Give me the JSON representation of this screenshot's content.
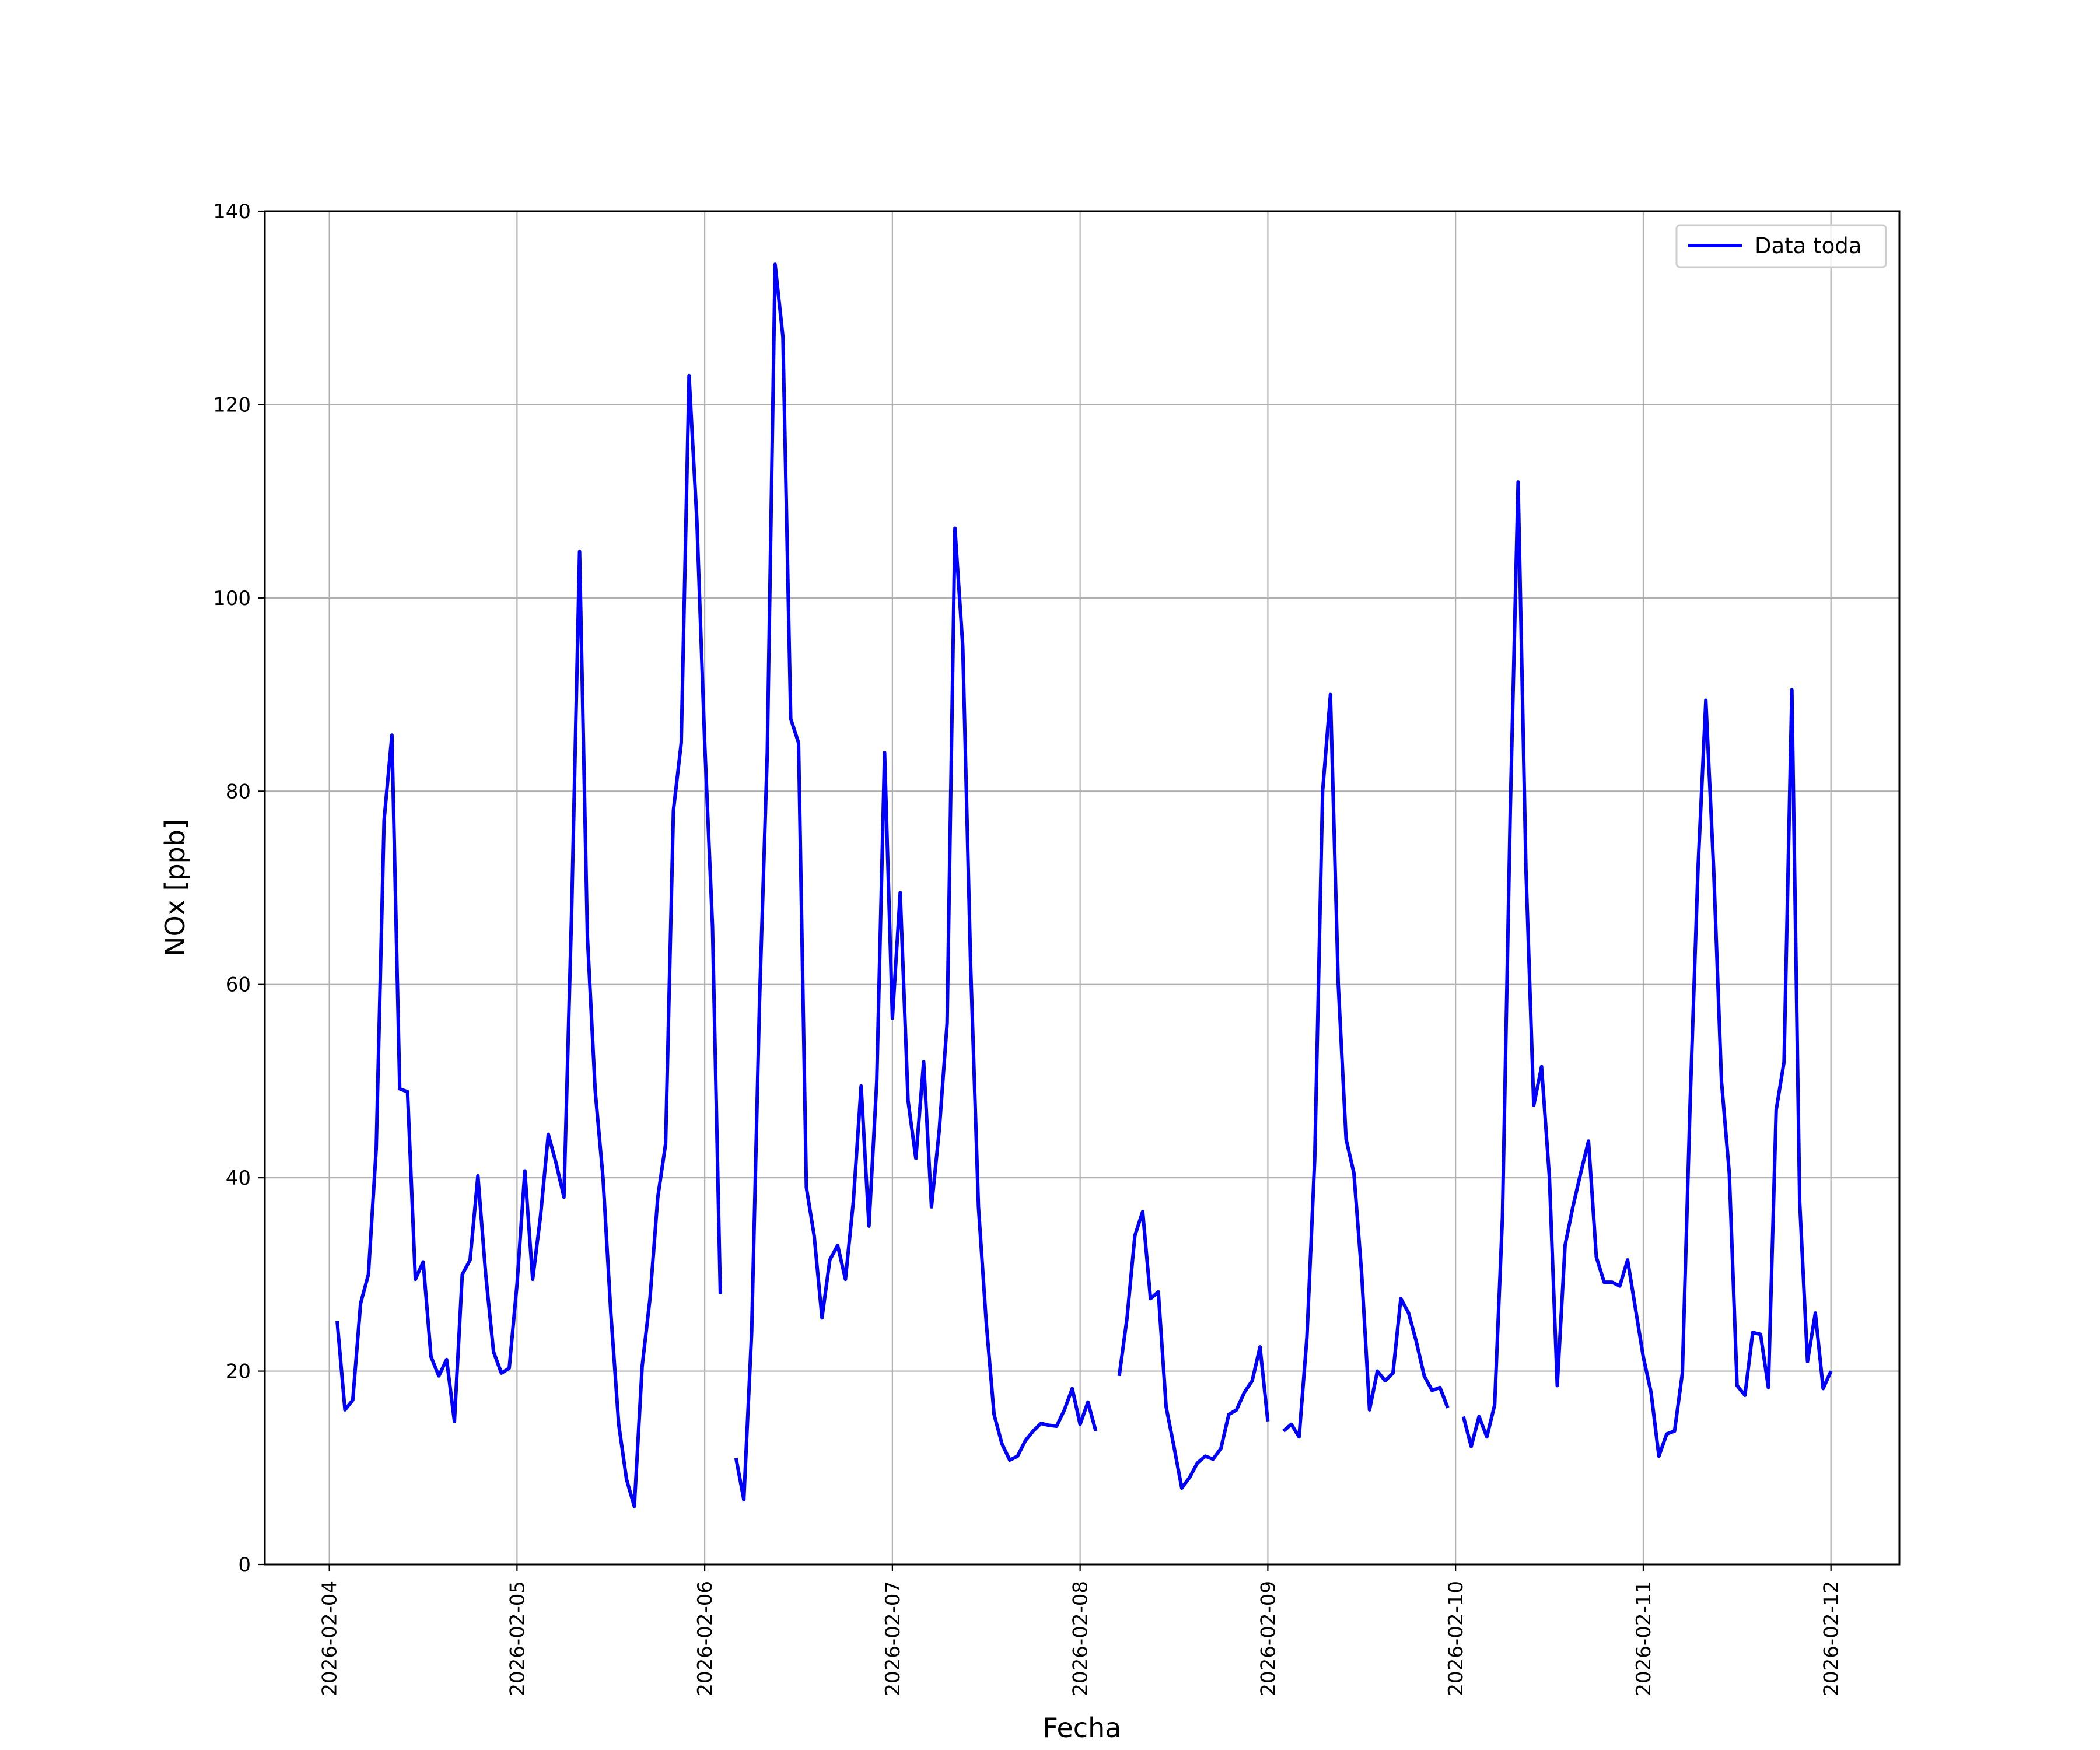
{
  "chart_data": {
    "type": "line",
    "xlabel": "Fecha",
    "ylabel": "NOx [ppb]",
    "ylim": [
      0,
      140
    ],
    "xlim": [
      "2026-02-03T15:45",
      "2026-02-12T08:45"
    ],
    "yticks": [
      0,
      20,
      40,
      60,
      80,
      100,
      120,
      140
    ],
    "xticks": [
      "2026-02-04",
      "2026-02-05",
      "2026-02-06",
      "2026-02-07",
      "2026-02-08",
      "2026-02-09",
      "2026-02-10",
      "2026-02-11",
      "2026-02-12"
    ],
    "grid": true,
    "legend_position": "upper right",
    "series": [
      {
        "name": "Data toda",
        "color": "#0000ff",
        "points": [
          [
            "2026-02-04T01:00",
            25.2
          ],
          [
            "2026-02-04T02:00",
            16.0
          ],
          [
            "2026-02-04T03:00",
            17.0
          ],
          [
            "2026-02-04T04:00",
            27.0
          ],
          [
            "2026-02-04T05:00",
            30.0
          ],
          [
            "2026-02-04T06:00",
            43.0
          ],
          [
            "2026-02-04T07:00",
            77.0
          ],
          [
            "2026-02-04T08:00",
            85.8
          ],
          [
            "2026-02-04T09:00",
            49.2
          ],
          [
            "2026-02-04T10:00",
            48.9
          ],
          [
            "2026-02-04T11:00",
            29.5
          ],
          [
            "2026-02-04T12:00",
            31.3
          ],
          [
            "2026-02-04T13:00",
            21.5
          ],
          [
            "2026-02-04T14:00",
            19.5
          ],
          [
            "2026-02-04T15:00",
            21.2
          ],
          [
            "2026-02-04T16:00",
            14.8
          ],
          [
            "2026-02-04T17:00",
            30.0
          ],
          [
            "2026-02-04T18:00",
            31.5
          ],
          [
            "2026-02-04T19:00",
            40.2
          ],
          [
            "2026-02-04T20:00",
            30.0
          ],
          [
            "2026-02-04T21:00",
            22.0
          ],
          [
            "2026-02-04T22:00",
            19.8
          ],
          [
            "2026-02-04T23:00",
            20.3
          ],
          [
            "2026-02-05T00:00",
            29.0
          ],
          [
            "2026-02-05T01:00",
            40.7
          ],
          [
            "2026-02-05T02:00",
            29.5
          ],
          [
            "2026-02-05T03:00",
            36.0
          ],
          [
            "2026-02-05T04:00",
            44.5
          ],
          [
            "2026-02-05T05:00",
            41.5
          ],
          [
            "2026-02-05T06:00",
            38.0
          ],
          [
            "2026-02-05T07:00",
            68.0
          ],
          [
            "2026-02-05T08:00",
            104.8
          ],
          [
            "2026-02-05T09:00",
            65.0
          ],
          [
            "2026-02-05T10:00",
            49.0
          ],
          [
            "2026-02-05T11:00",
            40.0
          ],
          [
            "2026-02-05T12:00",
            26.0
          ],
          [
            "2026-02-05T13:00",
            14.5
          ],
          [
            "2026-02-05T14:00",
            8.8
          ],
          [
            "2026-02-05T15:00",
            6.0
          ],
          [
            "2026-02-05T16:00",
            20.5
          ],
          [
            "2026-02-05T17:00",
            27.5
          ],
          [
            "2026-02-05T18:00",
            38.0
          ],
          [
            "2026-02-05T19:00",
            43.5
          ],
          [
            "2026-02-05T20:00",
            78.0
          ],
          [
            "2026-02-05T21:00",
            85.0
          ],
          [
            "2026-02-05T22:00",
            123.0
          ],
          [
            "2026-02-05T23:00",
            108.0
          ],
          [
            "2026-02-06T00:00",
            85.0
          ],
          [
            "2026-02-06T01:00",
            66.0
          ],
          [
            "2026-02-06T02:00",
            28.0
          ],
          null,
          [
            "2026-02-06T04:00",
            11.0
          ],
          [
            "2026-02-06T05:00",
            6.7
          ],
          [
            "2026-02-06T06:00",
            24.0
          ],
          [
            "2026-02-06T07:00",
            58.0
          ],
          [
            "2026-02-06T08:00",
            84.0
          ],
          [
            "2026-02-06T09:00",
            134.5
          ],
          [
            "2026-02-06T10:00",
            127.0
          ],
          [
            "2026-02-06T11:00",
            87.5
          ],
          [
            "2026-02-06T12:00",
            85.0
          ],
          [
            "2026-02-06T13:00",
            39.0
          ],
          [
            "2026-02-06T14:00",
            34.0
          ],
          [
            "2026-02-06T15:00",
            25.5
          ],
          [
            "2026-02-06T16:00",
            31.5
          ],
          [
            "2026-02-06T17:00",
            33.0
          ],
          [
            "2026-02-06T18:00",
            29.5
          ],
          [
            "2026-02-06T19:00",
            37.5
          ],
          [
            "2026-02-06T20:00",
            49.5
          ],
          [
            "2026-02-06T21:00",
            35.0
          ],
          [
            "2026-02-06T22:00",
            50.0
          ],
          [
            "2026-02-06T23:00",
            84.0
          ],
          [
            "2026-02-07T00:00",
            56.5
          ],
          [
            "2026-02-07T01:00",
            69.5
          ],
          [
            "2026-02-07T02:00",
            48.0
          ],
          [
            "2026-02-07T03:00",
            42.0
          ],
          [
            "2026-02-07T04:00",
            52.0
          ],
          [
            "2026-02-07T05:00",
            37.0
          ],
          [
            "2026-02-07T06:00",
            45.0
          ],
          [
            "2026-02-07T07:00",
            56.0
          ],
          [
            "2026-02-07T08:00",
            107.2
          ],
          [
            "2026-02-07T09:00",
            95.0
          ],
          [
            "2026-02-07T10:00",
            62.0
          ],
          [
            "2026-02-07T11:00",
            37.0
          ],
          [
            "2026-02-07T12:00",
            25.0
          ],
          [
            "2026-02-07T13:00",
            15.5
          ],
          [
            "2026-02-07T14:00",
            12.5
          ],
          [
            "2026-02-07T15:00",
            10.8
          ],
          [
            "2026-02-07T16:00",
            11.2
          ],
          [
            "2026-02-07T17:00",
            12.8
          ],
          [
            "2026-02-07T18:00",
            13.8
          ],
          [
            "2026-02-07T19:00",
            14.6
          ],
          [
            "2026-02-07T20:00",
            14.4
          ],
          [
            "2026-02-07T21:00",
            14.3
          ],
          [
            "2026-02-07T22:00",
            16.0
          ],
          [
            "2026-02-07T23:00",
            18.2
          ],
          [
            "2026-02-08T00:00",
            14.5
          ],
          [
            "2026-02-08T01:00",
            16.8
          ],
          [
            "2026-02-08T02:00",
            13.8
          ],
          null,
          [
            "2026-02-08T05:00",
            19.5
          ],
          [
            "2026-02-08T06:00",
            25.5
          ],
          [
            "2026-02-08T07:00",
            34.0
          ],
          [
            "2026-02-08T08:00",
            36.5
          ],
          [
            "2026-02-08T09:00",
            27.5
          ],
          [
            "2026-02-08T10:00",
            28.2
          ],
          [
            "2026-02-08T11:00",
            16.3
          ],
          [
            "2026-02-08T12:00",
            12.2
          ],
          [
            "2026-02-08T13:00",
            7.9
          ],
          [
            "2026-02-08T14:00",
            9.0
          ],
          [
            "2026-02-08T15:00",
            10.5
          ],
          [
            "2026-02-08T16:00",
            11.2
          ],
          [
            "2026-02-08T17:00",
            10.9
          ],
          [
            "2026-02-08T18:00",
            12.0
          ],
          [
            "2026-02-08T19:00",
            15.5
          ],
          [
            "2026-02-08T20:00",
            16.0
          ],
          [
            "2026-02-08T21:00",
            17.8
          ],
          [
            "2026-02-08T22:00",
            19.0
          ],
          [
            "2026-02-08T23:00",
            22.5
          ],
          [
            "2026-02-09T00:00",
            14.8
          ],
          null,
          [
            "2026-02-09T02:00",
            13.8
          ],
          [
            "2026-02-09T03:00",
            14.5
          ],
          [
            "2026-02-09T04:00",
            13.2
          ],
          [
            "2026-02-09T05:00",
            23.5
          ],
          [
            "2026-02-09T06:00",
            42.0
          ],
          [
            "2026-02-09T07:00",
            80.0
          ],
          [
            "2026-02-09T08:00",
            90.0
          ],
          [
            "2026-02-09T09:00",
            60.0
          ],
          [
            "2026-02-09T10:00",
            44.0
          ],
          [
            "2026-02-09T11:00",
            40.5
          ],
          [
            "2026-02-09T12:00",
            30.0
          ],
          [
            "2026-02-09T13:00",
            16.0
          ],
          [
            "2026-02-09T14:00",
            20.0
          ],
          [
            "2026-02-09T15:00",
            19.0
          ],
          [
            "2026-02-09T16:00",
            19.8
          ],
          [
            "2026-02-09T17:00",
            27.5
          ],
          [
            "2026-02-09T18:00",
            26.0
          ],
          [
            "2026-02-09T19:00",
            23.0
          ],
          [
            "2026-02-09T20:00",
            19.5
          ],
          [
            "2026-02-09T21:00",
            18.0
          ],
          [
            "2026-02-09T22:00",
            18.3
          ],
          [
            "2026-02-09T23:00",
            16.2
          ],
          null,
          [
            "2026-02-10T01:00",
            15.3
          ],
          [
            "2026-02-10T02:00",
            12.2
          ],
          [
            "2026-02-10T03:00",
            15.3
          ],
          [
            "2026-02-10T04:00",
            13.2
          ],
          [
            "2026-02-10T05:00",
            16.5
          ],
          [
            "2026-02-10T06:00",
            36.0
          ],
          [
            "2026-02-10T07:00",
            78.0
          ],
          [
            "2026-02-10T08:00",
            112.0
          ],
          [
            "2026-02-10T09:00",
            72.0
          ],
          [
            "2026-02-10T10:00",
            47.5
          ],
          [
            "2026-02-10T11:00",
            51.5
          ],
          [
            "2026-02-10T12:00",
            40.0
          ],
          [
            "2026-02-10T13:00",
            18.5
          ],
          [
            "2026-02-10T14:00",
            33.0
          ],
          [
            "2026-02-10T15:00",
            37.0
          ],
          [
            "2026-02-10T16:00",
            40.5
          ],
          [
            "2026-02-10T17:00",
            43.8
          ],
          [
            "2026-02-10T18:00",
            31.8
          ],
          [
            "2026-02-10T19:00",
            29.2
          ],
          [
            "2026-02-10T20:00",
            29.2
          ],
          [
            "2026-02-10T21:00",
            28.8
          ],
          [
            "2026-02-10T22:00",
            31.5
          ],
          [
            "2026-02-10T23:00",
            26.5
          ],
          [
            "2026-02-11T00:00",
            21.5
          ],
          [
            "2026-02-11T01:00",
            17.8
          ],
          [
            "2026-02-11T02:00",
            11.2
          ],
          [
            "2026-02-11T03:00",
            13.5
          ],
          [
            "2026-02-11T04:00",
            13.8
          ],
          [
            "2026-02-11T05:00",
            19.8
          ],
          [
            "2026-02-11T06:00",
            48.0
          ],
          [
            "2026-02-11T07:00",
            72.0
          ],
          [
            "2026-02-11T08:00",
            89.4
          ],
          [
            "2026-02-11T09:00",
            72.0
          ],
          [
            "2026-02-11T10:00",
            50.0
          ],
          [
            "2026-02-11T11:00",
            40.5
          ],
          [
            "2026-02-11T12:00",
            18.5
          ],
          [
            "2026-02-11T13:00",
            17.5
          ],
          [
            "2026-02-11T14:00",
            24.0
          ],
          [
            "2026-02-11T15:00",
            23.8
          ],
          [
            "2026-02-11T16:00",
            18.3
          ],
          [
            "2026-02-11T17:00",
            47.0
          ],
          [
            "2026-02-11T18:00",
            52.0
          ],
          [
            "2026-02-11T19:00",
            90.5
          ],
          [
            "2026-02-11T20:00",
            37.5
          ],
          [
            "2026-02-11T21:00",
            21.0
          ],
          [
            "2026-02-11T22:00",
            26.0
          ],
          [
            "2026-02-11T23:00",
            18.2
          ],
          [
            "2026-02-12T00:00",
            20.0
          ]
        ]
      }
    ]
  }
}
